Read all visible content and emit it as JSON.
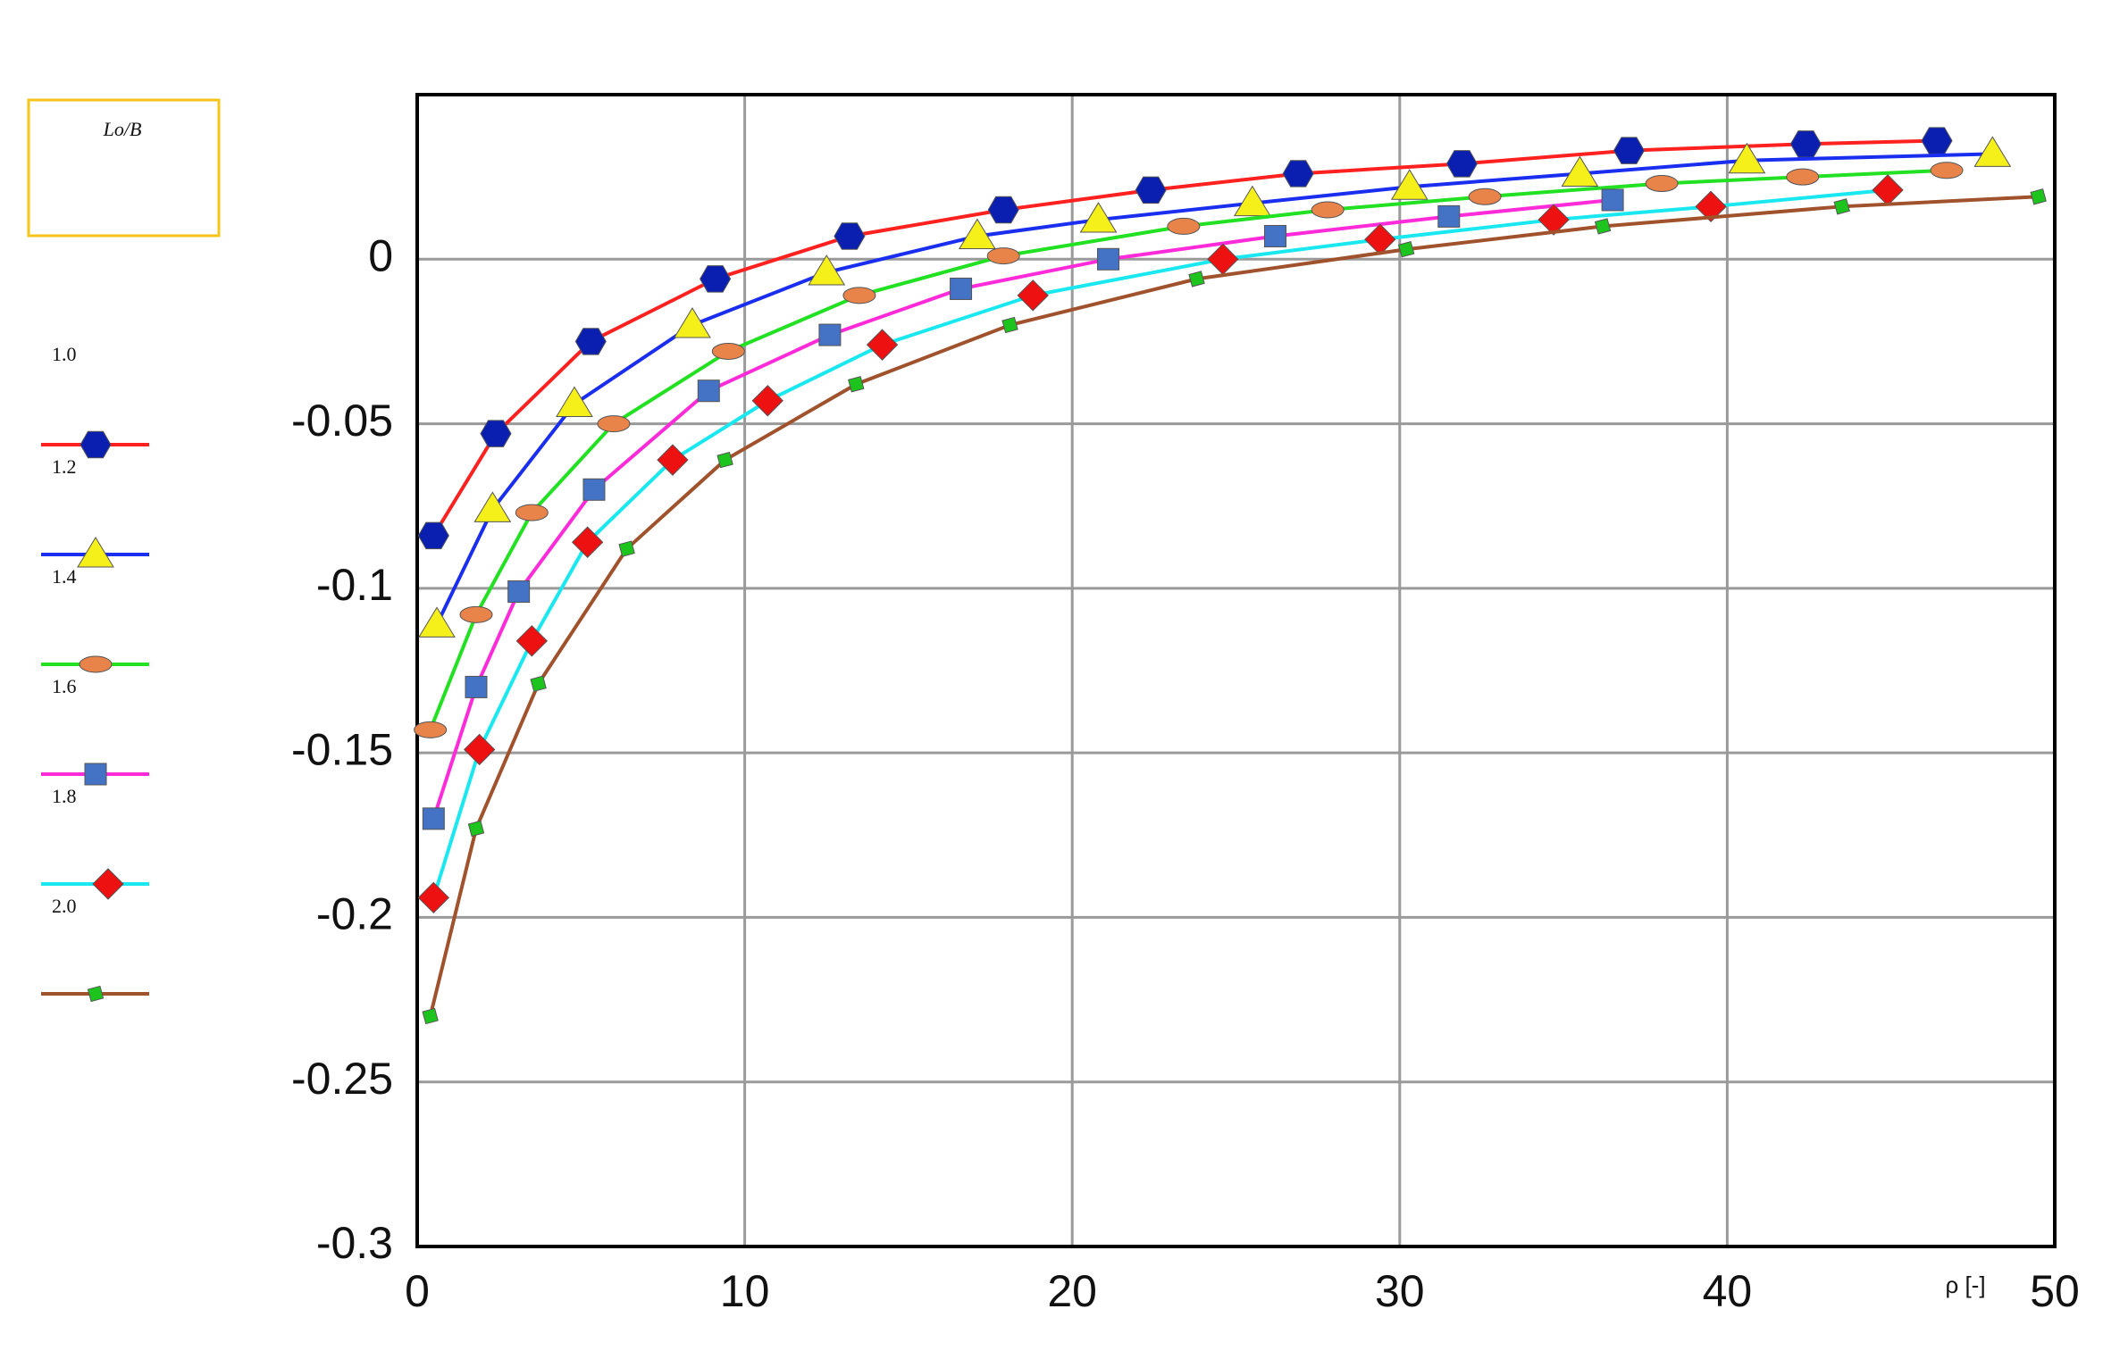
{
  "chart_data": {
    "type": "line",
    "legend_title": "Lo/B",
    "x_label": "ρ [-]",
    "xlim": [
      0,
      50
    ],
    "ylim": [
      -0.3,
      0.05
    ],
    "xticks": [
      0,
      10,
      20,
      30,
      40,
      50
    ],
    "yticks": [
      -0.3,
      -0.25,
      -0.2,
      -0.15,
      -0.1,
      -0.05,
      0
    ],
    "grid": true,
    "legend_position": "left",
    "series": [
      {
        "name": "1.0",
        "color": "#ff2020",
        "marker": "hexagon",
        "marker_color": "#0a1fb0",
        "x": [
          0.5,
          2.4,
          5.3,
          9.1,
          13.2,
          17.9,
          22.4,
          26.9,
          31.9,
          37.0,
          42.4,
          46.4
        ],
        "values": [
          -0.084,
          -0.053,
          -0.025,
          -0.006,
          0.007,
          0.015,
          0.021,
          0.026,
          0.029,
          0.033,
          0.035,
          0.036
        ]
      },
      {
        "name": "1.2",
        "color": "#1a2ef0",
        "marker": "triangle",
        "marker_color": "#f5f01a",
        "x": [
          0.6,
          2.3,
          4.8,
          8.4,
          12.5,
          17.1,
          20.8,
          25.5,
          30.3,
          35.5,
          40.6,
          48.1
        ],
        "values": [
          -0.111,
          -0.076,
          -0.044,
          -0.02,
          -0.004,
          0.007,
          0.012,
          0.017,
          0.022,
          0.026,
          0.03,
          0.032
        ]
      },
      {
        "name": "1.4",
        "color": "#22e022",
        "marker": "ellipse",
        "marker_color": "#e8834a",
        "x": [
          0.4,
          1.8,
          3.5,
          6.0,
          9.5,
          13.5,
          17.9,
          23.4,
          27.8,
          32.6,
          38.0,
          42.3,
          46.7
        ],
        "values": [
          -0.143,
          -0.108,
          -0.077,
          -0.05,
          -0.028,
          -0.011,
          0.001,
          0.01,
          0.015,
          0.019,
          0.023,
          0.025,
          0.027
        ]
      },
      {
        "name": "1.6",
        "color": "#ff2ad8",
        "marker": "square",
        "marker_color": "#4472c4",
        "x": [
          0.5,
          1.8,
          3.1,
          5.4,
          8.9,
          12.6,
          16.6,
          21.1,
          26.2,
          31.5,
          36.5
        ],
        "values": [
          -0.17,
          -0.13,
          -0.101,
          -0.07,
          -0.04,
          -0.023,
          -0.009,
          0.0,
          0.007,
          0.013,
          0.018
        ]
      },
      {
        "name": "1.8",
        "color": "#1ae8f0",
        "marker": "diamond",
        "marker_color": "#ee1111",
        "x": [
          0.5,
          1.9,
          3.5,
          5.2,
          7.8,
          10.7,
          14.2,
          18.8,
          24.6,
          29.4,
          34.7,
          39.5,
          44.9
        ],
        "values": [
          -0.194,
          -0.149,
          -0.116,
          -0.086,
          -0.061,
          -0.043,
          -0.026,
          -0.011,
          0.0,
          0.006,
          0.012,
          0.016,
          0.021
        ]
      },
      {
        "name": "2.0",
        "color": "#a0522d",
        "marker": "small-square",
        "marker_color": "#1ec41e",
        "x": [
          0.4,
          1.8,
          3.7,
          6.4,
          9.4,
          13.4,
          18.1,
          23.8,
          30.2,
          36.2,
          43.5,
          49.5
        ],
        "values": [
          -0.23,
          -0.173,
          -0.129,
          -0.088,
          -0.061,
          -0.038,
          -0.02,
          -0.006,
          0.003,
          0.01,
          0.016,
          0.019
        ]
      }
    ]
  }
}
